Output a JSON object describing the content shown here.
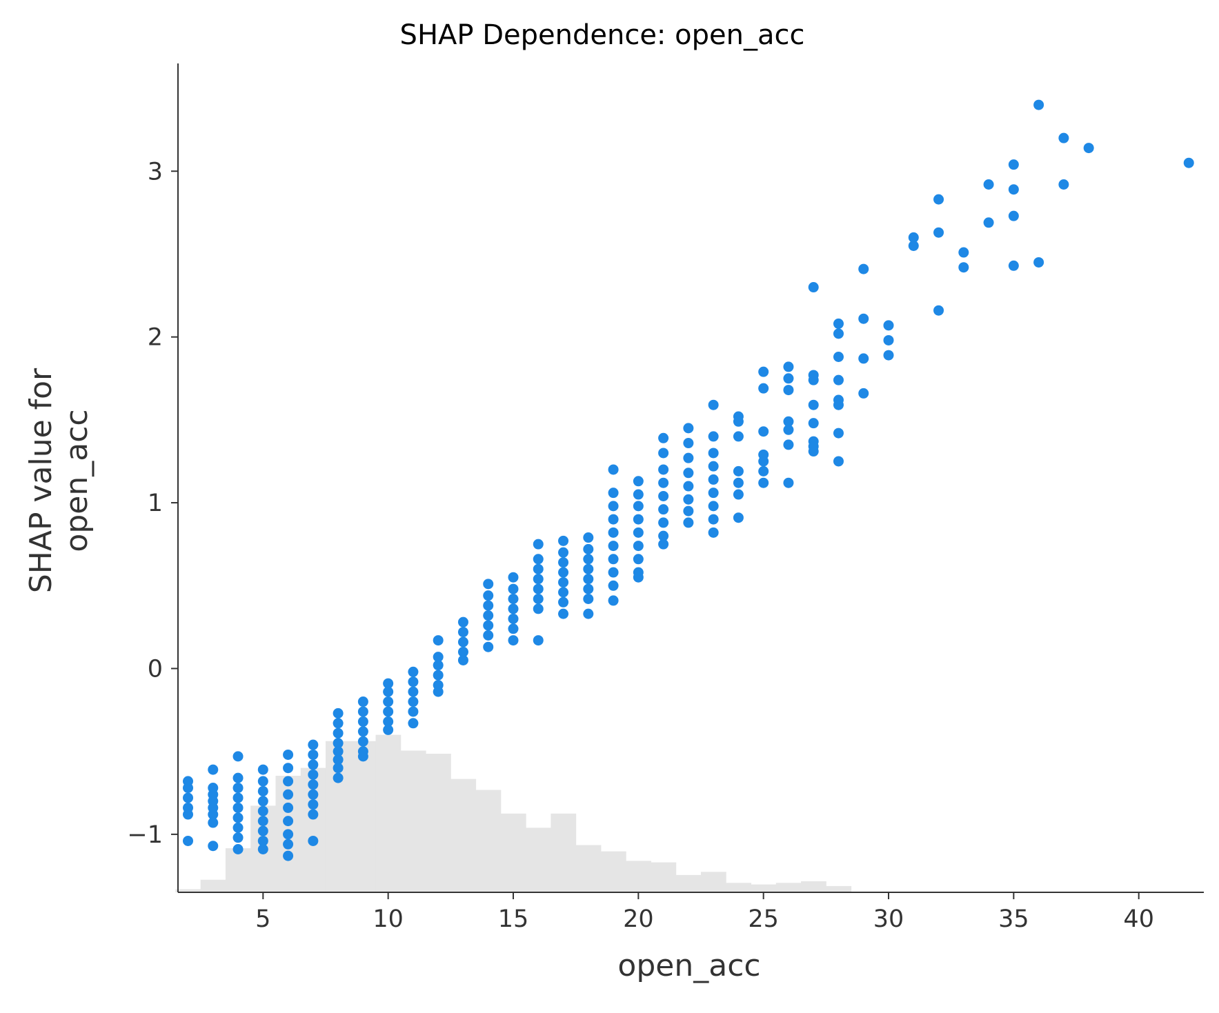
{
  "chart_data": {
    "type": "scatter",
    "title": "SHAP Dependence: open_acc",
    "xlabel": "open_acc",
    "ylabel_lines": [
      "SHAP value for",
      "open_acc"
    ],
    "xlim": [
      1.6,
      42.6
    ],
    "ylim": [
      -1.35,
      3.65
    ],
    "xticks": [
      5,
      10,
      15,
      20,
      25,
      30,
      35,
      40
    ],
    "xtick_labels": [
      "5",
      "10",
      "15",
      "20",
      "25",
      "30",
      "35",
      "40"
    ],
    "yticks": [
      -1,
      0,
      1,
      2,
      3
    ],
    "ytick_labels": [
      "−1",
      "0",
      "1",
      "2",
      "3"
    ],
    "grid": false,
    "point_color": "#1e88e5",
    "histogram_color": "#e5e5e5",
    "series": [
      {
        "points": [
          {
            "x": 2,
            "y": -0.68
          },
          {
            "x": 2,
            "y": -0.72
          },
          {
            "x": 2,
            "y": -0.78
          },
          {
            "x": 2,
            "y": -0.84
          },
          {
            "x": 2,
            "y": -0.88
          },
          {
            "x": 2,
            "y": -1.04
          },
          {
            "x": 3,
            "y": -0.61
          },
          {
            "x": 3,
            "y": -0.72
          },
          {
            "x": 3,
            "y": -0.76
          },
          {
            "x": 3,
            "y": -0.8
          },
          {
            "x": 3,
            "y": -0.84
          },
          {
            "x": 3,
            "y": -0.88
          },
          {
            "x": 3,
            "y": -0.93
          },
          {
            "x": 3,
            "y": -1.07
          },
          {
            "x": 4,
            "y": -0.53
          },
          {
            "x": 4,
            "y": -0.66
          },
          {
            "x": 4,
            "y": -0.72
          },
          {
            "x": 4,
            "y": -0.78
          },
          {
            "x": 4,
            "y": -0.84
          },
          {
            "x": 4,
            "y": -0.9
          },
          {
            "x": 4,
            "y": -0.96
          },
          {
            "x": 4,
            "y": -1.02
          },
          {
            "x": 4,
            "y": -1.09
          },
          {
            "x": 5,
            "y": -0.61
          },
          {
            "x": 5,
            "y": -0.68
          },
          {
            "x": 5,
            "y": -0.74
          },
          {
            "x": 5,
            "y": -0.8
          },
          {
            "x": 5,
            "y": -0.86
          },
          {
            "x": 5,
            "y": -0.92
          },
          {
            "x": 5,
            "y": -0.98
          },
          {
            "x": 5,
            "y": -1.04
          },
          {
            "x": 5,
            "y": -1.09
          },
          {
            "x": 6,
            "y": -0.52
          },
          {
            "x": 6,
            "y": -0.6
          },
          {
            "x": 6,
            "y": -0.68
          },
          {
            "x": 6,
            "y": -0.76
          },
          {
            "x": 6,
            "y": -0.84
          },
          {
            "x": 6,
            "y": -0.92
          },
          {
            "x": 6,
            "y": -1.0
          },
          {
            "x": 6,
            "y": -1.06
          },
          {
            "x": 6,
            "y": -1.13
          },
          {
            "x": 7,
            "y": -0.46
          },
          {
            "x": 7,
            "y": -0.52
          },
          {
            "x": 7,
            "y": -0.58
          },
          {
            "x": 7,
            "y": -0.64
          },
          {
            "x": 7,
            "y": -0.7
          },
          {
            "x": 7,
            "y": -0.76
          },
          {
            "x": 7,
            "y": -0.82
          },
          {
            "x": 7,
            "y": -0.88
          },
          {
            "x": 7,
            "y": -1.04
          },
          {
            "x": 8,
            "y": -0.27
          },
          {
            "x": 8,
            "y": -0.33
          },
          {
            "x": 8,
            "y": -0.39
          },
          {
            "x": 8,
            "y": -0.45
          },
          {
            "x": 8,
            "y": -0.5
          },
          {
            "x": 8,
            "y": -0.55
          },
          {
            "x": 8,
            "y": -0.6
          },
          {
            "x": 8,
            "y": -0.66
          },
          {
            "x": 9,
            "y": -0.2
          },
          {
            "x": 9,
            "y": -0.26
          },
          {
            "x": 9,
            "y": -0.32
          },
          {
            "x": 9,
            "y": -0.38
          },
          {
            "x": 9,
            "y": -0.44
          },
          {
            "x": 9,
            "y": -0.5
          },
          {
            "x": 9,
            "y": -0.53
          },
          {
            "x": 10,
            "y": -0.09
          },
          {
            "x": 10,
            "y": -0.14
          },
          {
            "x": 10,
            "y": -0.2
          },
          {
            "x": 10,
            "y": -0.26
          },
          {
            "x": 10,
            "y": -0.32
          },
          {
            "x": 10,
            "y": -0.37
          },
          {
            "x": 11,
            "y": -0.02
          },
          {
            "x": 11,
            "y": -0.08
          },
          {
            "x": 11,
            "y": -0.14
          },
          {
            "x": 11,
            "y": -0.2
          },
          {
            "x": 11,
            "y": -0.26
          },
          {
            "x": 11,
            "y": -0.33
          },
          {
            "x": 12,
            "y": 0.17
          },
          {
            "x": 12,
            "y": 0.07
          },
          {
            "x": 12,
            "y": 0.02
          },
          {
            "x": 12,
            "y": -0.04
          },
          {
            "x": 12,
            "y": -0.1
          },
          {
            "x": 12,
            "y": -0.14
          },
          {
            "x": 13,
            "y": 0.28
          },
          {
            "x": 13,
            "y": 0.22
          },
          {
            "x": 13,
            "y": 0.16
          },
          {
            "x": 13,
            "y": 0.1
          },
          {
            "x": 13,
            "y": 0.05
          },
          {
            "x": 14,
            "y": 0.51
          },
          {
            "x": 14,
            "y": 0.44
          },
          {
            "x": 14,
            "y": 0.38
          },
          {
            "x": 14,
            "y": 0.32
          },
          {
            "x": 14,
            "y": 0.26
          },
          {
            "x": 14,
            "y": 0.2
          },
          {
            "x": 14,
            "y": 0.13
          },
          {
            "x": 15,
            "y": 0.55
          },
          {
            "x": 15,
            "y": 0.48
          },
          {
            "x": 15,
            "y": 0.42
          },
          {
            "x": 15,
            "y": 0.36
          },
          {
            "x": 15,
            "y": 0.3
          },
          {
            "x": 15,
            "y": 0.24
          },
          {
            "x": 15,
            "y": 0.17
          },
          {
            "x": 16,
            "y": 0.75
          },
          {
            "x": 16,
            "y": 0.66
          },
          {
            "x": 16,
            "y": 0.6
          },
          {
            "x": 16,
            "y": 0.54
          },
          {
            "x": 16,
            "y": 0.48
          },
          {
            "x": 16,
            "y": 0.42
          },
          {
            "x": 16,
            "y": 0.36
          },
          {
            "x": 16,
            "y": 0.17
          },
          {
            "x": 17,
            "y": 0.77
          },
          {
            "x": 17,
            "y": 0.7
          },
          {
            "x": 17,
            "y": 0.64
          },
          {
            "x": 17,
            "y": 0.58
          },
          {
            "x": 17,
            "y": 0.52
          },
          {
            "x": 17,
            "y": 0.46
          },
          {
            "x": 17,
            "y": 0.4
          },
          {
            "x": 17,
            "y": 0.33
          },
          {
            "x": 18,
            "y": 0.79
          },
          {
            "x": 18,
            "y": 0.72
          },
          {
            "x": 18,
            "y": 0.66
          },
          {
            "x": 18,
            "y": 0.6
          },
          {
            "x": 18,
            "y": 0.54
          },
          {
            "x": 18,
            "y": 0.48
          },
          {
            "x": 18,
            "y": 0.42
          },
          {
            "x": 18,
            "y": 0.33
          },
          {
            "x": 19,
            "y": 1.2
          },
          {
            "x": 19,
            "y": 1.06
          },
          {
            "x": 19,
            "y": 0.98
          },
          {
            "x": 19,
            "y": 0.9
          },
          {
            "x": 19,
            "y": 0.82
          },
          {
            "x": 19,
            "y": 0.74
          },
          {
            "x": 19,
            "y": 0.66
          },
          {
            "x": 19,
            "y": 0.58
          },
          {
            "x": 19,
            "y": 0.5
          },
          {
            "x": 19,
            "y": 0.41
          },
          {
            "x": 20,
            "y": 1.13
          },
          {
            "x": 20,
            "y": 1.05
          },
          {
            "x": 20,
            "y": 0.98
          },
          {
            "x": 20,
            "y": 0.9
          },
          {
            "x": 20,
            "y": 0.82
          },
          {
            "x": 20,
            "y": 0.74
          },
          {
            "x": 20,
            "y": 0.66
          },
          {
            "x": 20,
            "y": 0.58
          },
          {
            "x": 20,
            "y": 0.55
          },
          {
            "x": 21,
            "y": 1.39
          },
          {
            "x": 21,
            "y": 1.3
          },
          {
            "x": 21,
            "y": 1.2
          },
          {
            "x": 21,
            "y": 1.12
          },
          {
            "x": 21,
            "y": 1.04
          },
          {
            "x": 21,
            "y": 0.96
          },
          {
            "x": 21,
            "y": 0.88
          },
          {
            "x": 21,
            "y": 0.8
          },
          {
            "x": 21,
            "y": 0.75
          },
          {
            "x": 22,
            "y": 1.45
          },
          {
            "x": 22,
            "y": 1.36
          },
          {
            "x": 22,
            "y": 1.27
          },
          {
            "x": 22,
            "y": 1.18
          },
          {
            "x": 22,
            "y": 1.1
          },
          {
            "x": 22,
            "y": 1.02
          },
          {
            "x": 22,
            "y": 0.95
          },
          {
            "x": 22,
            "y": 0.88
          },
          {
            "x": 23,
            "y": 1.59
          },
          {
            "x": 23,
            "y": 1.4
          },
          {
            "x": 23,
            "y": 1.3
          },
          {
            "x": 23,
            "y": 1.22
          },
          {
            "x": 23,
            "y": 1.14
          },
          {
            "x": 23,
            "y": 1.06
          },
          {
            "x": 23,
            "y": 0.98
          },
          {
            "x": 23,
            "y": 0.9
          },
          {
            "x": 23,
            "y": 0.82
          },
          {
            "x": 24,
            "y": 1.52
          },
          {
            "x": 24,
            "y": 1.49
          },
          {
            "x": 24,
            "y": 1.4
          },
          {
            "x": 24,
            "y": 1.19
          },
          {
            "x": 24,
            "y": 1.12
          },
          {
            "x": 24,
            "y": 1.05
          },
          {
            "x": 24,
            "y": 0.91
          },
          {
            "x": 25,
            "y": 1.79
          },
          {
            "x": 25,
            "y": 1.69
          },
          {
            "x": 25,
            "y": 1.43
          },
          {
            "x": 25,
            "y": 1.29
          },
          {
            "x": 25,
            "y": 1.25
          },
          {
            "x": 25,
            "y": 1.19
          },
          {
            "x": 25,
            "y": 1.12
          },
          {
            "x": 26,
            "y": 1.82
          },
          {
            "x": 26,
            "y": 1.75
          },
          {
            "x": 26,
            "y": 1.68
          },
          {
            "x": 26,
            "y": 1.49
          },
          {
            "x": 26,
            "y": 1.44
          },
          {
            "x": 26,
            "y": 1.35
          },
          {
            "x": 26,
            "y": 1.12
          },
          {
            "x": 27,
            "y": 2.3
          },
          {
            "x": 27,
            "y": 1.77
          },
          {
            "x": 27,
            "y": 1.74
          },
          {
            "x": 27,
            "y": 1.59
          },
          {
            "x": 27,
            "y": 1.48
          },
          {
            "x": 27,
            "y": 1.37
          },
          {
            "x": 27,
            "y": 1.34
          },
          {
            "x": 27,
            "y": 1.31
          },
          {
            "x": 28,
            "y": 2.08
          },
          {
            "x": 28,
            "y": 2.02
          },
          {
            "x": 28,
            "y": 1.88
          },
          {
            "x": 28,
            "y": 1.74
          },
          {
            "x": 28,
            "y": 1.62
          },
          {
            "x": 28,
            "y": 1.59
          },
          {
            "x": 28,
            "y": 1.42
          },
          {
            "x": 28,
            "y": 1.25
          },
          {
            "x": 29,
            "y": 2.41
          },
          {
            "x": 29,
            "y": 2.11
          },
          {
            "x": 29,
            "y": 1.87
          },
          {
            "x": 29,
            "y": 1.66
          },
          {
            "x": 30,
            "y": 2.07
          },
          {
            "x": 30,
            "y": 1.98
          },
          {
            "x": 30,
            "y": 1.89
          },
          {
            "x": 31,
            "y": 2.6
          },
          {
            "x": 31,
            "y": 2.55
          },
          {
            "x": 32,
            "y": 2.83
          },
          {
            "x": 32,
            "y": 2.63
          },
          {
            "x": 32,
            "y": 2.16
          },
          {
            "x": 33,
            "y": 2.51
          },
          {
            "x": 33,
            "y": 2.42
          },
          {
            "x": 34,
            "y": 2.92
          },
          {
            "x": 34,
            "y": 2.69
          },
          {
            "x": 35,
            "y": 3.04
          },
          {
            "x": 35,
            "y": 2.89
          },
          {
            "x": 35,
            "y": 2.73
          },
          {
            "x": 35,
            "y": 2.43
          },
          {
            "x": 36,
            "y": 3.4
          },
          {
            "x": 36,
            "y": 2.45
          },
          {
            "x": 37,
            "y": 3.2
          },
          {
            "x": 37,
            "y": 2.92
          },
          {
            "x": 38,
            "y": 3.14
          },
          {
            "x": 42,
            "y": 3.05
          }
        ]
      }
    ],
    "histogram": {
      "note_units": "relative frequency (0-1) per bin over open_acc",
      "bins": [
        {
          "x0": 1.5,
          "x1": 2.5,
          "rel": 0.02
        },
        {
          "x0": 2.5,
          "x1": 3.5,
          "rel": 0.08
        },
        {
          "x0": 3.5,
          "x1": 4.5,
          "rel": 0.28
        },
        {
          "x0": 4.5,
          "x1": 5.5,
          "rel": 0.55
        },
        {
          "x0": 5.5,
          "x1": 6.5,
          "rel": 0.74
        },
        {
          "x0": 6.5,
          "x1": 7.5,
          "rel": 0.79
        },
        {
          "x0": 7.5,
          "x1": 8.5,
          "rel": 0.96
        },
        {
          "x0": 8.5,
          "x1": 9.5,
          "rel": 0.96
        },
        {
          "x0": 9.5,
          "x1": 10.5,
          "rel": 1.0
        },
        {
          "x0": 10.5,
          "x1": 11.5,
          "rel": 0.9
        },
        {
          "x0": 11.5,
          "x1": 12.5,
          "rel": 0.88
        },
        {
          "x0": 12.5,
          "x1": 13.5,
          "rel": 0.72
        },
        {
          "x0": 13.5,
          "x1": 14.5,
          "rel": 0.65
        },
        {
          "x0": 14.5,
          "x1": 15.5,
          "rel": 0.5
        },
        {
          "x0": 15.5,
          "x1": 16.5,
          "rel": 0.41
        },
        {
          "x0": 16.5,
          "x1": 17.5,
          "rel": 0.5
        },
        {
          "x0": 17.5,
          "x1": 18.5,
          "rel": 0.3
        },
        {
          "x0": 18.5,
          "x1": 19.5,
          "rel": 0.26
        },
        {
          "x0": 19.5,
          "x1": 20.5,
          "rel": 0.2
        },
        {
          "x0": 20.5,
          "x1": 21.5,
          "rel": 0.19
        },
        {
          "x0": 21.5,
          "x1": 22.5,
          "rel": 0.11
        },
        {
          "x0": 22.5,
          "x1": 23.5,
          "rel": 0.13
        },
        {
          "x0": 23.5,
          "x1": 24.5,
          "rel": 0.06
        },
        {
          "x0": 24.5,
          "x1": 25.5,
          "rel": 0.05
        },
        {
          "x0": 25.5,
          "x1": 26.5,
          "rel": 0.06
        },
        {
          "x0": 26.5,
          "x1": 27.5,
          "rel": 0.07
        },
        {
          "x0": 27.5,
          "x1": 28.5,
          "rel": 0.04
        }
      ]
    }
  }
}
